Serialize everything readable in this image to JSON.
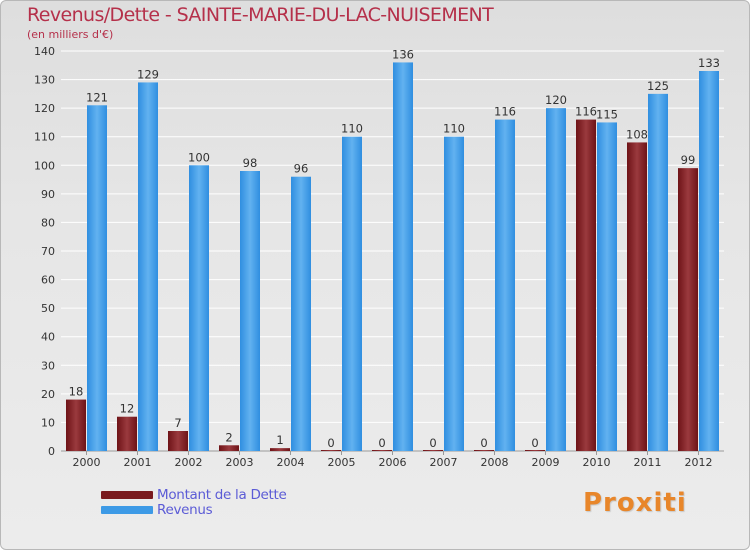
{
  "header": {
    "title": "Revenus/Dette - SAINTE-MARIE-DU-LAC-NUISEMENT",
    "subtitle": "(en milliers d'€)"
  },
  "legend": {
    "items": [
      {
        "label": "Montant de la Dette",
        "color": "#7a1a1e"
      },
      {
        "label": "Revenus",
        "color": "#3d9ae6"
      }
    ]
  },
  "logo": {
    "text": "Proxiti"
  },
  "colors": {
    "debt": "#6e1317",
    "debt_light": "#9a3a3e",
    "revenue": "#2f8ee0",
    "revenue_light": "#62b2f0",
    "grid": "#ffffff",
    "axis_text": "#333333",
    "title": "#b5304a"
  },
  "chart_data": {
    "type": "bar",
    "title": "Revenus/Dette - SAINTE-MARIE-DU-LAC-NUISEMENT",
    "ylabel": "(en milliers d'€)",
    "xlabel": "",
    "categories": [
      "2000",
      "2001",
      "2002",
      "2003",
      "2004",
      "2005",
      "2006",
      "2007",
      "2008",
      "2009",
      "2010",
      "2011",
      "2012"
    ],
    "series": [
      {
        "name": "Montant de la Dette",
        "values": [
          18,
          12,
          7,
          2,
          1,
          0,
          0,
          0,
          0,
          0,
          116,
          108,
          99
        ]
      },
      {
        "name": "Revenus",
        "values": [
          121,
          129,
          100,
          98,
          96,
          110,
          136,
          110,
          116,
          120,
          115,
          125,
          133
        ]
      }
    ],
    "ylim": [
      0,
      140
    ],
    "yticks": [
      0,
      10,
      20,
      30,
      40,
      50,
      60,
      70,
      80,
      90,
      100,
      110,
      120,
      130,
      140
    ],
    "grid": true,
    "legend_position": "bottom-left"
  }
}
